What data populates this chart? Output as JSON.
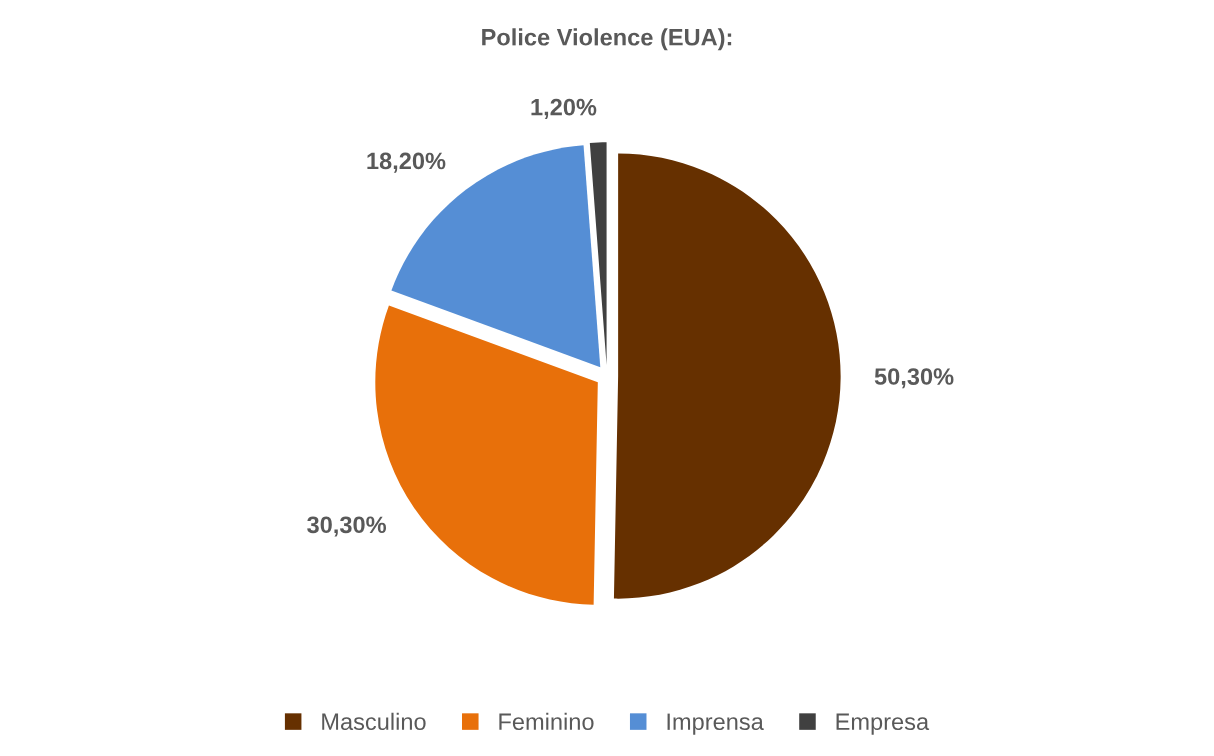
{
  "chart_data": {
    "type": "pie",
    "title": "Police Violence (EUA):",
    "categories": [
      "Masculino",
      "Feminino",
      "Imprensa",
      "Empresa"
    ],
    "values": [
      50.3,
      30.3,
      18.2,
      1.2
    ],
    "value_labels": [
      "50,30%",
      "30,30%",
      "18,20%",
      "1,20%"
    ],
    "colors": [
      "#663000",
      "#e8700a",
      "#558ed5",
      "#404040"
    ],
    "legend": "bottom"
  }
}
